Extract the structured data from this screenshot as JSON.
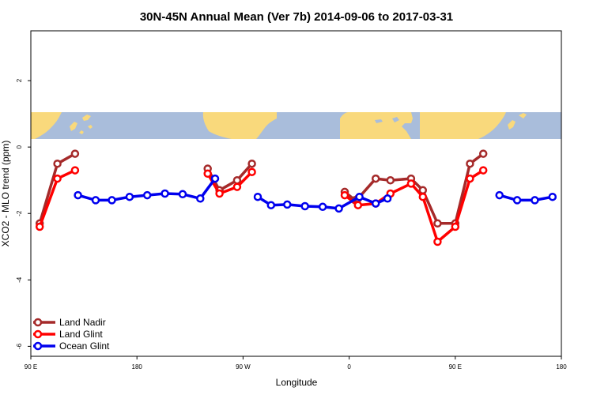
{
  "chart_data": {
    "type": "line",
    "title": "30N-45N Annual Mean (Ver 7b)   2014-09-06 to 2017-03-31",
    "xlabel": "Longitude",
    "ylabel": "XCO2 - MLO trend (ppm)",
    "xlim": [
      90,
      450
    ],
    "ylim": [
      -6.3,
      3.5
    ],
    "x_ticks": [
      {
        "value": 90,
        "label": "90 E"
      },
      {
        "value": 162,
        "label": "180"
      },
      {
        "value": 234,
        "label": "90 W"
      },
      {
        "value": 306,
        "label": "0"
      },
      {
        "value": 378,
        "label": "90 E"
      },
      {
        "value": 450,
        "label": "180"
      }
    ],
    "y_ticks": [
      {
        "value": 2,
        "label": "2"
      },
      {
        "value": 0,
        "label": "0"
      },
      {
        "value": -2,
        "label": "-2"
      },
      {
        "value": -4,
        "label": "-4"
      },
      {
        "value": -6,
        "label": "-6"
      }
    ],
    "map_band": {
      "ymin": 0.2,
      "ymax": 1.05,
      "ocean_color": "#a9bddb",
      "land_color": "#f9d97c"
    },
    "series": [
      {
        "name": "Land Nadir",
        "color": "#a52a2a",
        "segments": [
          [
            [
              96,
              -2.3
            ],
            [
              108,
              -0.5
            ],
            [
              120,
              -0.2
            ]
          ],
          [
            [
              210,
              -0.65
            ],
            [
              218,
              -1.3
            ],
            [
              230,
              -1.0
            ],
            [
              240,
              -0.5
            ]
          ],
          [
            [
              303,
              -1.35
            ],
            [
              310,
              -1.6
            ],
            [
              312,
              -1.55
            ],
            [
              324,
              -0.95
            ],
            [
              334,
              -1.0
            ],
            [
              348,
              -0.95
            ],
            [
              356,
              -1.3
            ],
            [
              366,
              -2.3
            ],
            [
              378,
              -2.3
            ],
            [
              388,
              -0.5
            ],
            [
              397,
              -0.2
            ]
          ]
        ]
      },
      {
        "name": "Land Glint",
        "color": "#ff0000",
        "segments": [
          [
            [
              96,
              -2.4
            ],
            [
              108,
              -0.95
            ],
            [
              120,
              -0.7
            ]
          ],
          [
            [
              210,
              -0.8
            ],
            [
              218,
              -1.4
            ],
            [
              230,
              -1.2
            ],
            [
              240,
              -0.75
            ]
          ],
          [
            [
              303,
              -1.45
            ],
            [
              312,
              -1.75
            ],
            [
              324,
              -1.7
            ],
            [
              334,
              -1.4
            ],
            [
              348,
              -1.1
            ],
            [
              356,
              -1.5
            ],
            [
              366,
              -2.85
            ],
            [
              378,
              -2.4
            ],
            [
              388,
              -0.95
            ],
            [
              397,
              -0.7
            ]
          ]
        ]
      },
      {
        "name": "Ocean Glint",
        "color": "#0000ee",
        "segments": [
          [
            [
              122,
              -1.45
            ],
            [
              134,
              -1.6
            ],
            [
              145,
              -1.6
            ],
            [
              157,
              -1.5
            ],
            [
              169,
              -1.45
            ],
            [
              181,
              -1.4
            ],
            [
              193,
              -1.42
            ],
            [
              205,
              -1.55
            ],
            [
              215,
              -0.95
            ]
          ],
          [
            [
              244,
              -1.5
            ],
            [
              253,
              -1.75
            ],
            [
              264,
              -1.73
            ],
            [
              276,
              -1.78
            ],
            [
              288,
              -1.8
            ],
            [
              299,
              -1.85
            ],
            [
              313,
              -1.5
            ],
            [
              324,
              -1.7
            ],
            [
              332,
              -1.55
            ]
          ],
          [
            [
              408,
              -1.45
            ],
            [
              420,
              -1.6
            ],
            [
              432,
              -1.6
            ],
            [
              444,
              -1.5
            ]
          ]
        ]
      }
    ],
    "legend": {
      "position": "bottom-left"
    }
  }
}
